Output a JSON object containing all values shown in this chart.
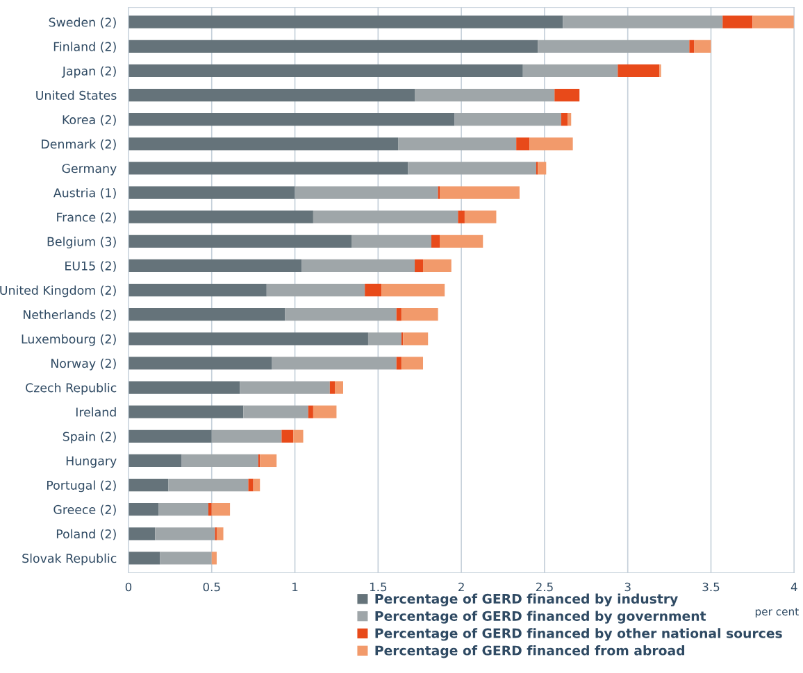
{
  "chart_data": {
    "type": "bar",
    "orientation": "horizontal",
    "stacked": true,
    "xlabel": "per cent",
    "categories": [
      "Sweden (2)",
      "Finland (2)",
      "Japan (2)",
      "United States",
      "Korea (2)",
      "Denmark (2)",
      "Germany",
      "Austria (1)",
      "France (2)",
      "Belgium (3)",
      "EU15 (2)",
      "United Kingdom (2)",
      "Netherlands (2)",
      "Luxembourg (2)",
      "Norway (2)",
      "Czech Republic",
      "Ireland",
      "Spain (2)",
      "Hungary",
      "Portugal (2)",
      "Greece (2)",
      "Poland (2)",
      "Slovak Republic"
    ],
    "series": [
      {
        "name": "Percentage of GERD financed by industry",
        "color": "#65737a",
        "values": [
          2.61,
          2.46,
          2.37,
          1.72,
          1.96,
          1.62,
          1.68,
          1.0,
          1.11,
          1.34,
          1.04,
          0.83,
          0.94,
          1.44,
          0.86,
          0.67,
          0.69,
          0.5,
          0.32,
          0.24,
          0.18,
          0.16,
          0.19
        ]
      },
      {
        "name": "Percentage of GERD financed by government",
        "color": "#9fa6a9",
        "values": [
          0.96,
          0.91,
          0.57,
          0.84,
          0.64,
          0.71,
          0.77,
          0.86,
          0.87,
          0.48,
          0.68,
          0.59,
          0.67,
          0.2,
          0.75,
          0.54,
          0.39,
          0.42,
          0.46,
          0.48,
          0.3,
          0.36,
          0.31
        ]
      },
      {
        "name": "Percentage of GERD financed by other national sources",
        "color": "#e84a1a",
        "values": [
          0.18,
          0.03,
          0.25,
          0.15,
          0.04,
          0.08,
          0.01,
          0.01,
          0.04,
          0.05,
          0.05,
          0.1,
          0.03,
          0.01,
          0.03,
          0.03,
          0.03,
          0.07,
          0.01,
          0.03,
          0.02,
          0.01,
          0
        ]
      },
      {
        "name": "Percentage of GERD financed from abroad",
        "color": "#f29a6b",
        "values": [
          0.25,
          0.1,
          0.01,
          0,
          0.02,
          0.26,
          0.05,
          0.48,
          0.19,
          0.26,
          0.17,
          0.38,
          0.22,
          0.15,
          0.13,
          0.05,
          0.14,
          0.06,
          0.1,
          0.04,
          0.11,
          0.04,
          0.03
        ]
      }
    ],
    "xlim": [
      0,
      4
    ],
    "xticks": [
      0,
      0.5,
      1,
      1.5,
      2,
      2.5,
      3,
      3.5,
      4
    ],
    "grid": "x",
    "legend": "bottom"
  }
}
